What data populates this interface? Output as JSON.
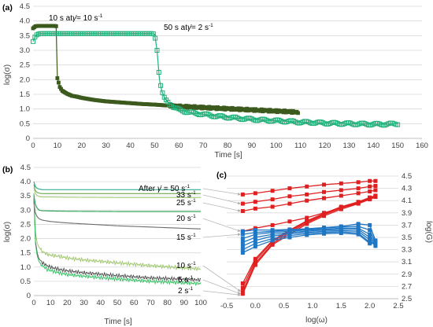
{
  "chart_data": [
    {
      "panel": "(a)",
      "type": "scatter",
      "xlabel": "Time [s]",
      "ylabel": "log(σ)",
      "xlim": [
        0,
        160
      ],
      "ylim": [
        0,
        4.5
      ],
      "xticks": [
        "0",
        "10",
        "20",
        "30",
        "40",
        "50",
        "60",
        "70",
        "80",
        "90",
        "100",
        "110",
        "120",
        "130",
        "140",
        "150",
        "160"
      ],
      "yticks": [
        "0",
        "0.5",
        "1.0",
        "1.5",
        "2.0",
        "2.5",
        "3.0",
        "3.5",
        "4.0",
        "4.5"
      ],
      "annotations": [
        {
          "text": "10 s at",
          "rate": "= 10 s",
          "sup": "-1"
        },
        {
          "text": "50 s at",
          "rate": "= 2 s",
          "sup": "-1"
        }
      ],
      "gamma_symbol": "γ̇",
      "series": [
        {
          "color": "#3d5a1e",
          "marker": "square-filled",
          "x": [
            0,
            1,
            2,
            3,
            4,
            5,
            6,
            7,
            8,
            9,
            9.5,
            10,
            11,
            12,
            14,
            16,
            18,
            20,
            25,
            30,
            35,
            40,
            45,
            50,
            55,
            60,
            65,
            70,
            75,
            80,
            85,
            90,
            95,
            100,
            105,
            109
          ],
          "y": [
            3.75,
            3.82,
            3.83,
            3.83,
            3.83,
            3.83,
            3.83,
            3.83,
            3.83,
            3.83,
            3.82,
            2.05,
            1.75,
            1.62,
            1.52,
            1.45,
            1.42,
            1.38,
            1.31,
            1.26,
            1.23,
            1.2,
            1.17,
            1.15,
            1.12,
            1.09,
            1.07,
            1.05,
            1.03,
            1.01,
            0.99,
            0.97,
            0.95,
            0.93,
            0.91,
            0.89
          ]
        },
        {
          "color": "#22b07a",
          "marker": "square-open",
          "x": [
            0,
            1,
            2,
            3,
            5,
            10,
            15,
            20,
            25,
            30,
            35,
            40,
            45,
            48,
            49,
            50,
            51,
            52,
            53,
            54,
            55,
            56,
            58,
            60,
            62,
            65,
            70,
            75,
            80,
            85,
            90,
            95,
            100,
            105,
            110,
            115,
            120,
            125,
            130,
            135,
            140,
            145,
            150
          ],
          "y": [
            3.3,
            3.5,
            3.55,
            3.57,
            3.57,
            3.57,
            3.57,
            3.57,
            3.57,
            3.57,
            3.57,
            3.57,
            3.57,
            3.57,
            3.57,
            3.55,
            3.0,
            2.0,
            1.6,
            1.4,
            1.28,
            1.2,
            1.05,
            0.97,
            0.93,
            0.87,
            0.82,
            0.76,
            0.72,
            0.68,
            0.65,
            0.62,
            0.6,
            0.58,
            0.55,
            0.54,
            0.52,
            0.51,
            0.5,
            0.49,
            0.48,
            0.48,
            0.5
          ]
        }
      ]
    },
    {
      "panel": "(b)",
      "type": "line",
      "xlabel": "Time [s]",
      "ylabel": "log(σ)",
      "xlim": [
        0,
        100
      ],
      "ylim": [
        0,
        4.5
      ],
      "xticks": [
        "0",
        "10",
        "20",
        "30",
        "40",
        "50",
        "60",
        "70",
        "80",
        "90",
        "100"
      ],
      "yticks": [
        "0",
        "0.5",
        "1.0",
        "1.5",
        "2.0",
        "2.5",
        "3.0",
        "3.5",
        "4.0",
        "4.5"
      ],
      "series": [
        {
          "label": "After",
          "rate": "50 s",
          "sup": "-1",
          "color": "#1aa085",
          "x": [
            0,
            1,
            3,
            5,
            10,
            20,
            50,
            100
          ],
          "y": [
            4.0,
            3.8,
            3.74,
            3.72,
            3.72,
            3.72,
            3.72,
            3.72
          ]
        },
        {
          "label": "",
          "rate": "33 s",
          "sup": "-1",
          "color": "#6fa550",
          "x": [
            0,
            1,
            3,
            5,
            10,
            20,
            50,
            100
          ],
          "y": [
            3.9,
            3.65,
            3.6,
            3.58,
            3.58,
            3.58,
            3.58,
            3.58
          ]
        },
        {
          "label": "",
          "rate": "25 s",
          "sup": "-1",
          "color": "#a7cf7e",
          "x": [
            0,
            1,
            3,
            5,
            10,
            20,
            50,
            100
          ],
          "y": [
            3.8,
            3.55,
            3.48,
            3.46,
            3.46,
            3.45,
            3.44,
            3.44
          ]
        },
        {
          "label": "",
          "rate": "20 s",
          "sup": "-1",
          "color": "#22a050",
          "x": [
            0,
            1,
            3,
            5,
            10,
            20,
            50,
            100
          ],
          "y": [
            3.55,
            3.15,
            3.0,
            2.98,
            2.97,
            2.96,
            2.95,
            2.95
          ]
        },
        {
          "label": "",
          "rate": "15 s",
          "sup": "-1",
          "color": "#6b6b6b",
          "x": [
            0,
            1,
            3,
            5,
            10,
            20,
            50,
            100
          ],
          "y": [
            3.3,
            2.85,
            2.7,
            2.65,
            2.6,
            2.55,
            2.45,
            2.34
          ]
        },
        {
          "label": "",
          "rate": "10 s",
          "sup": "-1",
          "color": "#9cc56a",
          "x": [
            0,
            1,
            2,
            3,
            5,
            8,
            10,
            15,
            20,
            30,
            50,
            70,
            100
          ],
          "y": [
            3.5,
            2.2,
            1.85,
            1.7,
            1.55,
            1.45,
            1.42,
            1.38,
            1.32,
            1.25,
            1.15,
            1.05,
            0.93
          ]
        },
        {
          "label": "",
          "rate": "5 s",
          "sup": "-1",
          "color": "#4d4d4d",
          "x": [
            0,
            1,
            2,
            3,
            5,
            8,
            10,
            15,
            20,
            30,
            50,
            70,
            100
          ],
          "y": [
            3.4,
            1.9,
            1.5,
            1.3,
            1.15,
            1.05,
            1.0,
            0.92,
            0.87,
            0.8,
            0.7,
            0.62,
            0.55
          ]
        },
        {
          "label": "",
          "rate": "2 s",
          "sup": "-1",
          "color": "#2fbf60",
          "x": [
            0,
            1,
            2,
            3,
            5,
            8,
            10,
            15,
            20,
            30,
            50,
            70,
            100
          ],
          "y": [
            3.6,
            1.8,
            1.4,
            1.2,
            1.05,
            0.92,
            0.88,
            0.8,
            0.74,
            0.68,
            0.58,
            0.5,
            0.42
          ]
        }
      ]
    },
    {
      "panel": "(c)",
      "type": "line",
      "xlabel": "log(ω)",
      "ylabel": "log(G)",
      "xlim": [
        -0.5,
        2.5
      ],
      "ylim": [
        2.5,
        4.5
      ],
      "xticks": [
        "-0.5",
        "0.0",
        "0.5",
        "1.0",
        "1.5",
        "2.0",
        "2.5"
      ],
      "yticks": [
        "2.5",
        "2.7",
        "2.9",
        "3.1",
        "3.3",
        "3.5",
        "3.7",
        "3.9",
        "4.1",
        "4.3",
        "4.5"
      ],
      "x": [
        -0.22,
        0.0,
        0.3,
        0.6,
        0.9,
        1.2,
        1.5,
        1.8,
        2.0,
        2.1
      ],
      "series": [
        {
          "color": "#e02020",
          "y": [
            4.2,
            4.22,
            4.26,
            4.3,
            4.33,
            4.36,
            4.38,
            4.4,
            4.42,
            4.42
          ]
        },
        {
          "color": "#e02020",
          "y": [
            4.05,
            4.08,
            4.12,
            4.17,
            4.2,
            4.24,
            4.27,
            4.3,
            4.33,
            4.34
          ]
        },
        {
          "color": "#e02020",
          "y": [
            3.93,
            3.97,
            4.0,
            4.05,
            4.1,
            4.14,
            4.18,
            4.22,
            4.25,
            4.27
          ]
        },
        {
          "color": "#e02020",
          "y": [
            3.6,
            3.65,
            3.7,
            3.76,
            3.82,
            3.9,
            3.98,
            4.07,
            4.15,
            4.18
          ]
        },
        {
          "color": "#e02020",
          "y": [
            2.58,
            3.05,
            3.38,
            3.55,
            3.72,
            3.85,
            3.96,
            4.05,
            4.12,
            4.16
          ]
        },
        {
          "color": "#e02020",
          "y": [
            2.62,
            3.08,
            3.4,
            3.58,
            3.74,
            3.87,
            3.98,
            4.06,
            4.13,
            4.17
          ]
        },
        {
          "color": "#e02020",
          "y": [
            2.68,
            3.12,
            3.43,
            3.6,
            3.76,
            3.88,
            3.99,
            4.07,
            4.14,
            4.17
          ]
        },
        {
          "color": "#e02020",
          "y": [
            2.75,
            3.15,
            3.45,
            3.62,
            3.77,
            3.89,
            4.0,
            4.08,
            4.15,
            4.18
          ]
        },
        {
          "color": "#1f77c4",
          "y": [
            3.6,
            3.62,
            3.62,
            3.63,
            3.64,
            3.66,
            3.68,
            3.72,
            3.7,
            3.45
          ]
        },
        {
          "color": "#1f77c4",
          "y": [
            3.55,
            3.58,
            3.6,
            3.62,
            3.63,
            3.65,
            3.67,
            3.68,
            3.62,
            3.42
          ]
        },
        {
          "color": "#1f77c4",
          "y": [
            3.48,
            3.55,
            3.58,
            3.6,
            3.62,
            3.63,
            3.65,
            3.65,
            3.55,
            3.4
          ]
        },
        {
          "color": "#1f77c4",
          "y": [
            3.42,
            3.5,
            3.55,
            3.58,
            3.6,
            3.62,
            3.63,
            3.63,
            3.5,
            3.38
          ]
        },
        {
          "color": "#1f77c4",
          "y": [
            3.36,
            3.45,
            3.52,
            3.56,
            3.58,
            3.6,
            3.61,
            3.6,
            3.46,
            3.36
          ]
        },
        {
          "color": "#1f77c4",
          "y": [
            3.3,
            3.4,
            3.48,
            3.53,
            3.56,
            3.58,
            3.59,
            3.57,
            3.42,
            3.4
          ]
        },
        {
          "color": "#1f77c4",
          "y": [
            3.25,
            3.35,
            3.45,
            3.5,
            3.54,
            3.56,
            3.57,
            3.55,
            3.4,
            3.4
          ]
        }
      ]
    }
  ]
}
